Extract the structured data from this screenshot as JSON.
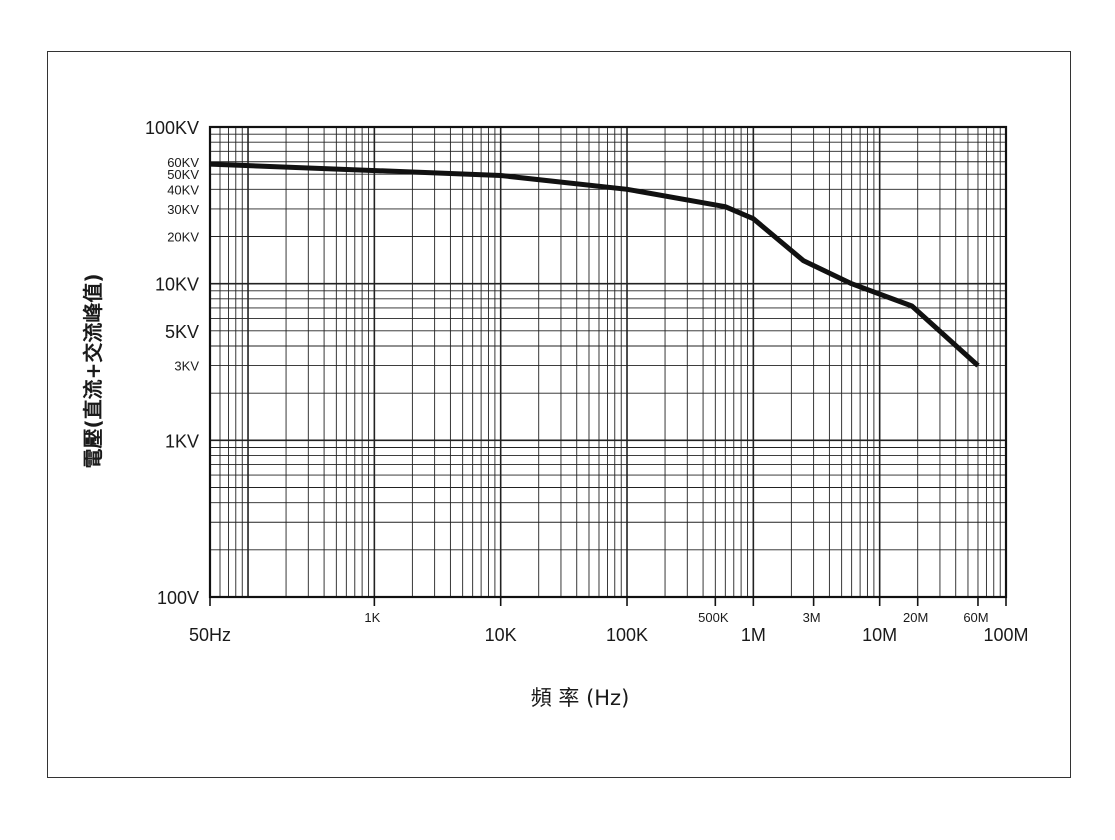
{
  "chart_data": {
    "type": "line",
    "title": "",
    "xlabel": "頻 率 (Hz)",
    "ylabel": "電壓(直流+交流峰值)",
    "xscale": "log",
    "yscale": "log",
    "xlim": [
      50,
      100000000
    ],
    "ylim": [
      100,
      100000
    ],
    "grid": true,
    "legend": "none",
    "x_ticks": [
      {
        "value": 50,
        "label": "50Hz",
        "size": "large"
      },
      {
        "value": 1000,
        "label": "1K",
        "size": "small"
      },
      {
        "value": 10000,
        "label": "10K",
        "size": "large"
      },
      {
        "value": 100000,
        "label": "100K",
        "size": "large"
      },
      {
        "value": 500000,
        "label": "500K",
        "size": "small"
      },
      {
        "value": 1000000,
        "label": "1M",
        "size": "large"
      },
      {
        "value": 3000000,
        "label": "3M",
        "size": "small"
      },
      {
        "value": 10000000,
        "label": "10M",
        "size": "large"
      },
      {
        "value": 20000000,
        "label": "20M",
        "size": "small"
      },
      {
        "value": 60000000,
        "label": "60M",
        "size": "small"
      },
      {
        "value": 100000000,
        "label": "100M",
        "size": "large"
      }
    ],
    "y_ticks": [
      {
        "value": 100000,
        "label": "100KV",
        "size": "large"
      },
      {
        "value": 60000,
        "label": "60KV",
        "size": "small"
      },
      {
        "value": 50000,
        "label": "50KV",
        "size": "small"
      },
      {
        "value": 40000,
        "label": "40KV",
        "size": "small"
      },
      {
        "value": 30000,
        "label": "30KV",
        "size": "small"
      },
      {
        "value": 20000,
        "label": "20KV",
        "size": "small"
      },
      {
        "value": 10000,
        "label": "10KV",
        "size": "large"
      },
      {
        "value": 5000,
        "label": "5KV",
        "size": "large"
      },
      {
        "value": 3000,
        "label": "3KV",
        "size": "small"
      },
      {
        "value": 1000,
        "label": "1KV",
        "size": "large"
      },
      {
        "value": 100,
        "label": "100V",
        "size": "large"
      }
    ],
    "series": [
      {
        "color": "#111111",
        "points": [
          [
            50,
            58000
          ],
          [
            10000,
            49000
          ],
          [
            100000,
            40000
          ],
          [
            600000,
            31000
          ],
          [
            1000000,
            26000
          ],
          [
            2500000,
            14000
          ],
          [
            6000000,
            10000
          ],
          [
            18000000,
            7200
          ],
          [
            60000000,
            3000
          ]
        ]
      }
    ]
  }
}
